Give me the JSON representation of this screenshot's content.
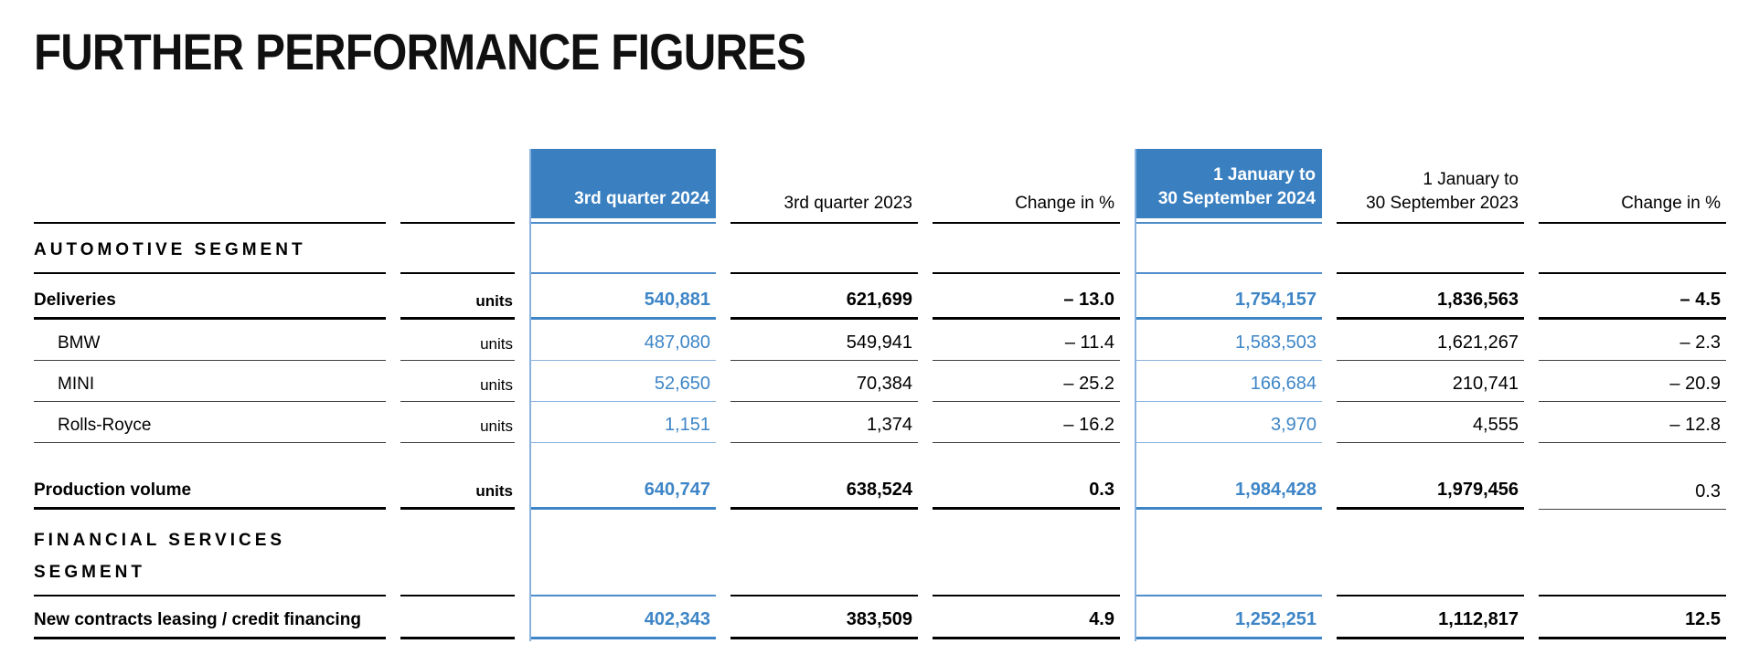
{
  "page": {
    "title": "FURTHER PERFORMANCE FIGURES"
  },
  "colors": {
    "highlight_blue": "#3a80c1",
    "value_blue": "#3d85c6",
    "light_blue_line": "#8ab2de",
    "text_black": "#000000"
  },
  "table": {
    "headers": {
      "q3_2024": "3rd quarter 2024",
      "q3_2023": "3rd quarter 2023",
      "change_q": "Change in %",
      "ytd_2024_line1": "1 January to",
      "ytd_2024_line2": "30 September 2024",
      "ytd_2023_line1": "1 January to",
      "ytd_2023_line2": "30 September 2023",
      "change_ytd": "Change in %"
    },
    "sections": {
      "automotive": "AUTOMOTIVE SEGMENT",
      "financial_line1": "FINANCIAL SERVICES",
      "financial_line2": "SEGMENT"
    },
    "rows": {
      "deliveries": {
        "label": "Deliveries",
        "units": "units",
        "q3_2024": "540,881",
        "q3_2023": "621,699",
        "change_q": "– 13.0",
        "ytd_2024": "1,754,157",
        "ytd_2023": "1,836,563",
        "change_ytd": "– 4.5"
      },
      "bmw": {
        "label": "BMW",
        "units": "units",
        "q3_2024": "487,080",
        "q3_2023": "549,941",
        "change_q": "– 11.4",
        "ytd_2024": "1,583,503",
        "ytd_2023": "1,621,267",
        "change_ytd": "– 2.3"
      },
      "mini": {
        "label": "MINI",
        "units": "units",
        "q3_2024": "52,650",
        "q3_2023": "70,384",
        "change_q": "– 25.2",
        "ytd_2024": "166,684",
        "ytd_2023": "210,741",
        "change_ytd": "– 20.9"
      },
      "rolls_royce": {
        "label": "Rolls-Royce",
        "units": "units",
        "q3_2024": "1,151",
        "q3_2023": "1,374",
        "change_q": "– 16.2",
        "ytd_2024": "3,970",
        "ytd_2023": "4,555",
        "change_ytd": "– 12.8"
      },
      "production_volume": {
        "label": "Production volume",
        "units": "units",
        "q3_2024": "640,747",
        "q3_2023": "638,524",
        "change_q": "0.3",
        "ytd_2024": "1,984,428",
        "ytd_2023": "1,979,456",
        "change_ytd": "0.3"
      },
      "new_contracts": {
        "label": "New contracts leasing / credit financing",
        "units": "",
        "q3_2024": "402,343",
        "q3_2023": "383,509",
        "change_q": "4.9",
        "ytd_2024": "1,252,251",
        "ytd_2023": "1,112,817",
        "change_ytd": "12.5"
      }
    }
  }
}
